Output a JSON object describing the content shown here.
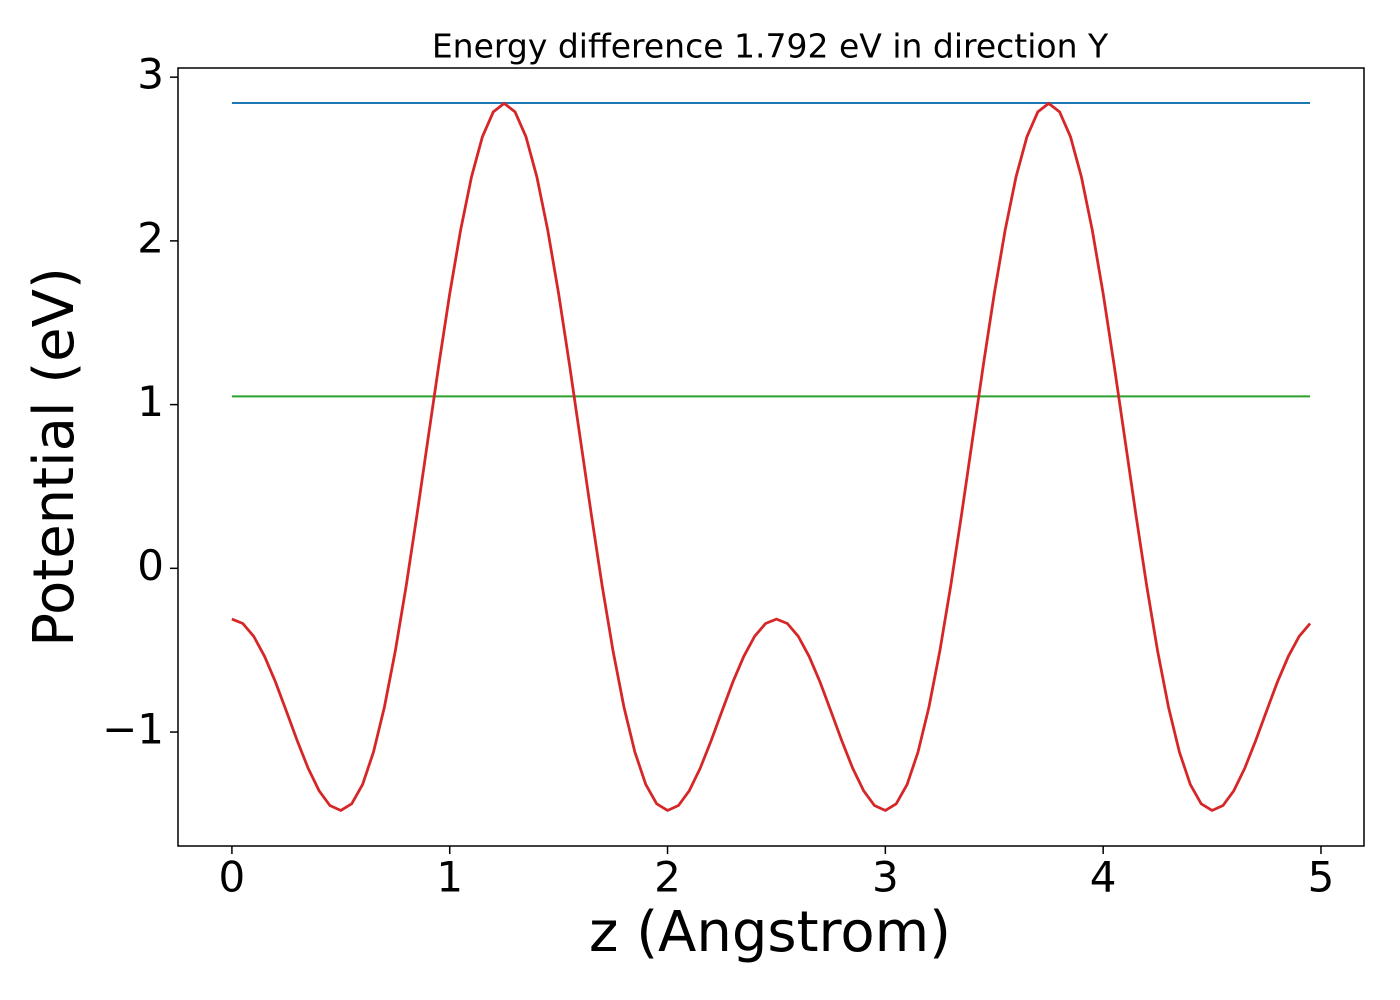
{
  "chart_data": {
    "type": "line",
    "title": "Energy difference 1.792 eV in direction Y",
    "xlabel": "z (Angstrom)",
    "ylabel": "Potential (eV)",
    "xlim": [
      -0.2475,
      5.1975
    ],
    "ylim": [
      -1.696,
      3.056
    ],
    "xticks": [
      0,
      1,
      2,
      3,
      4,
      5
    ],
    "yticks": [
      {
        "value": -1,
        "label": "−1"
      },
      0,
      1,
      2,
      3
    ],
    "series": [
      {
        "color": "#1f77b4",
        "x": [
          0,
          4.95
        ],
        "values": [
          2.842,
          2.842
        ]
      },
      {
        "color": "#2ca02c",
        "x": [
          0,
          4.95
        ],
        "values": [
          1.05,
          1.05
        ]
      },
      {
        "color": "#d62728",
        "x": [
          0,
          0.05,
          0.1,
          0.15,
          0.2,
          0.25,
          0.3,
          0.35,
          0.4,
          0.45,
          0.5,
          0.55,
          0.6,
          0.65,
          0.7,
          0.75,
          0.8,
          0.85,
          0.9,
          0.95,
          1,
          1.05,
          1.1,
          1.15,
          1.2,
          1.25,
          1.3,
          1.35,
          1.4,
          1.45,
          1.5,
          1.55,
          1.6,
          1.65,
          1.7,
          1.75,
          1.8,
          1.85,
          1.9,
          1.95,
          2,
          2.05,
          2.1,
          2.15,
          2.2,
          2.25,
          2.3,
          2.35,
          2.4,
          2.45,
          2.5,
          2.55,
          2.6,
          2.65,
          2.7,
          2.75,
          2.8,
          2.85,
          2.9,
          2.95,
          3,
          3.05,
          3.1,
          3.15,
          3.2,
          3.25,
          3.3,
          3.35,
          3.4,
          3.45,
          3.5,
          3.55,
          3.6,
          3.65,
          3.7,
          3.75,
          3.8,
          3.85,
          3.9,
          3.95,
          4,
          4.05,
          4.1,
          4.15,
          4.2,
          4.25,
          4.3,
          4.35,
          4.4,
          4.45,
          4.5,
          4.55,
          4.6,
          4.65,
          4.7,
          4.75,
          4.8,
          4.85,
          4.9,
          4.95
        ],
        "values": [
          -0.31,
          -0.337,
          -0.415,
          -0.538,
          -0.694,
          -0.872,
          -1.053,
          -1.221,
          -1.358,
          -1.449,
          -1.479,
          -1.438,
          -1.32,
          -1.122,
          -0.848,
          -0.506,
          -0.108,
          0.33,
          0.787,
          1.243,
          1.677,
          2.066,
          2.391,
          2.636,
          2.788,
          2.84,
          2.788,
          2.636,
          2.391,
          2.066,
          1.677,
          1.243,
          0.787,
          0.33,
          -0.108,
          -0.506,
          -0.848,
          -1.122,
          -1.32,
          -1.438,
          -1.479,
          -1.449,
          -1.358,
          -1.221,
          -1.053,
          -0.872,
          -0.694,
          -0.538,
          -0.415,
          -0.337,
          -0.31,
          -0.337,
          -0.415,
          -0.538,
          -0.694,
          -0.872,
          -1.053,
          -1.221,
          -1.358,
          -1.449,
          -1.479,
          -1.438,
          -1.32,
          -1.122,
          -0.848,
          -0.506,
          -0.108,
          0.33,
          0.787,
          1.243,
          1.677,
          2.066,
          2.391,
          2.636,
          2.788,
          2.84,
          2.788,
          2.636,
          2.391,
          2.066,
          1.677,
          1.243,
          0.787,
          0.33,
          -0.108,
          -0.506,
          -0.848,
          -1.122,
          -1.32,
          -1.438,
          -1.479,
          -1.449,
          -1.358,
          -1.221,
          -1.053,
          -0.872,
          -0.694,
          -0.538,
          -0.415,
          -0.337
        ]
      }
    ]
  }
}
